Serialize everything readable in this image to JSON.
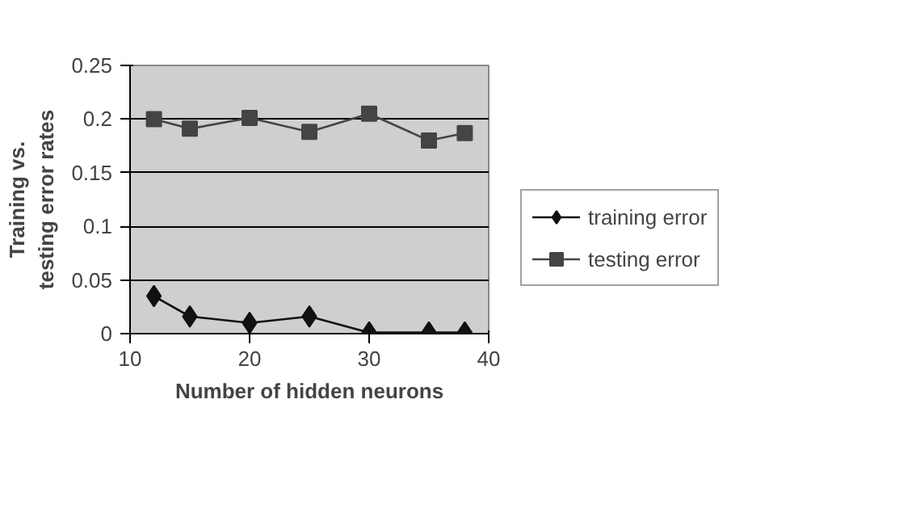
{
  "chart_data": {
    "type": "line",
    "xlabel": "Number of hidden neurons",
    "ylabel": "Training vs. testing error rates",
    "x": [
      12,
      15,
      20,
      25,
      30,
      35,
      38
    ],
    "series": [
      {
        "name": "training error",
        "color": "#111111",
        "marker": "diamond",
        "values": [
          0.035,
          0.016,
          0.01,
          0.016,
          0.001,
          0.001,
          0.001
        ]
      },
      {
        "name": "testing error",
        "color": "#444444",
        "marker": "square",
        "values": [
          0.2,
          0.191,
          0.201,
          0.188,
          0.205,
          0.18,
          0.187
        ]
      }
    ],
    "xlim": [
      10,
      40
    ],
    "xticks": [
      10,
      20,
      30,
      40
    ],
    "ylim": [
      0,
      0.25
    ],
    "yticks": [
      0,
      0.05,
      0.1,
      0.15,
      0.2,
      0.25
    ],
    "grid": "y",
    "legend": "right"
  }
}
